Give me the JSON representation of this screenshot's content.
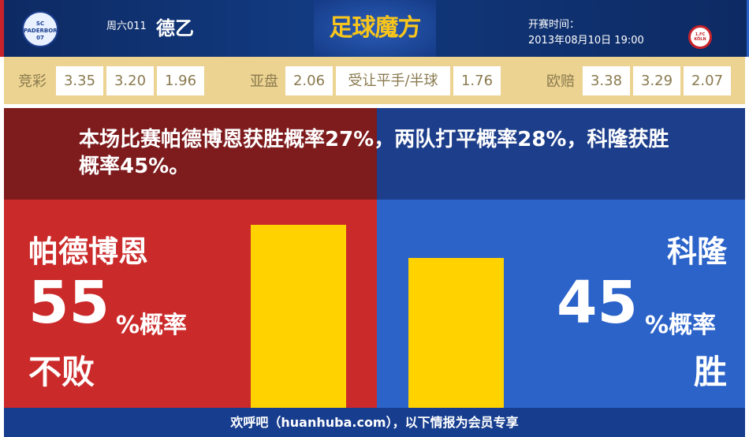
{
  "header": {
    "home_logo_text": "SC PADERBORN 07",
    "round": "周六011",
    "league": "德乙",
    "brand": "足球魔方",
    "kickoff_label": "开赛时间：",
    "kickoff_time": "2013年08月10日 19:00",
    "away_logo_text": "1.FC KÖLN"
  },
  "odds": {
    "jingcai": {
      "label": "竞彩",
      "values": [
        "3.35",
        "3.20",
        "1.96"
      ]
    },
    "yapan": {
      "label": "亚盘",
      "home": "2.06",
      "line": "受让平手/半球",
      "away": "1.76"
    },
    "oupei": {
      "label": "欧赔",
      "values": [
        "3.38",
        "3.29",
        "2.07"
      ]
    }
  },
  "summary": "本场比赛帕德博恩获胜概率27%，两队打平概率28%，科隆获胜概率45%。",
  "home": {
    "name": "帕德博恩",
    "percent": "55",
    "percent_value": 55,
    "unit": "%概率",
    "outcome": "不败",
    "color": "#cb2a2a"
  },
  "away": {
    "name": "科隆",
    "percent": "45",
    "percent_value": 45,
    "unit": "%概率",
    "outcome": "胜",
    "color": "#2b63c9"
  },
  "bar_color": "#ffd200",
  "footer": "欢呼吧（huanhuba.com），以下情报为会员专享"
}
